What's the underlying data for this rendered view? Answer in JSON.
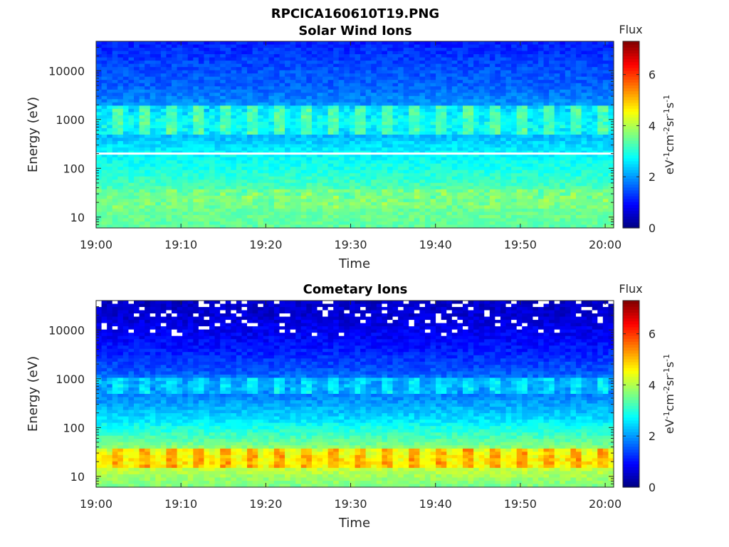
{
  "figure": {
    "suptitle": "RPCICA160610T19.PNG"
  },
  "chart_data": [
    {
      "type": "heatmap",
      "title": "Solar Wind Ions",
      "xlabel": "Time",
      "ylabel": "Energy (eV)",
      "x_ticks": [
        "19:00",
        "19:10",
        "19:20",
        "19:30",
        "19:40",
        "19:50",
        "20:00"
      ],
      "x_range": [
        "19:00",
        "20:01"
      ],
      "y_scale": "log",
      "y_ticks": [
        10,
        100,
        1000,
        10000
      ],
      "y_tick_labels": [
        "10",
        "100",
        "1000",
        "10000"
      ],
      "y_range": [
        6,
        40000
      ],
      "colorbar": {
        "title": "Flux",
        "label": "eV-1cm-2sr-1s-1",
        "ticks": [
          0,
          2,
          4,
          6
        ],
        "range": [
          0,
          7.3
        ],
        "colormap": "jet"
      },
      "features": [
        {
          "energy_eV": [
            500,
            2000
          ],
          "flux_level": 3.3,
          "pattern": "periodic pulses every ~3.2 min"
        },
        {
          "energy_eV": [
            15,
            40
          ],
          "flux_level": 3.7,
          "pattern": "periodic pulses every ~3.2 min"
        },
        {
          "energy_eV": 200,
          "flux_level": null,
          "pattern": "no-data gap line"
        }
      ],
      "energy_profile": {
        "energy_eV": [
          6,
          10,
          20,
          30,
          60,
          100,
          150,
          200,
          300,
          500,
          800,
          1500,
          3000,
          5000,
          10000,
          20000,
          40000
        ],
        "mean_flux": [
          3.4,
          3.5,
          3.5,
          3.4,
          3.1,
          2.9,
          2.8,
          2.7,
          2.5,
          2.2,
          2.5,
          2.1,
          1.8,
          1.6,
          1.5,
          1.3,
          1.1
        ]
      }
    },
    {
      "type": "heatmap",
      "title": "Cometary Ions",
      "xlabel": "Time",
      "ylabel": "Energy (eV)",
      "x_ticks": [
        "19:00",
        "19:10",
        "19:20",
        "19:30",
        "19:40",
        "19:50",
        "20:00"
      ],
      "x_range": [
        "19:00",
        "20:01"
      ],
      "y_scale": "log",
      "y_ticks": [
        10,
        100,
        1000,
        10000
      ],
      "y_tick_labels": [
        "10",
        "100",
        "1000",
        "10000"
      ],
      "y_range": [
        6,
        40000
      ],
      "colorbar": {
        "title": "Flux",
        "label": "eV-1cm-2sr-1s-1",
        "ticks": [
          0,
          2,
          4,
          6
        ],
        "range": [
          0,
          7.3
        ],
        "colormap": "jet"
      },
      "features": [
        {
          "energy_eV": [
            500,
            1000
          ],
          "flux_level": 2.6,
          "pattern": "periodic pulses every ~3.2 min"
        },
        {
          "energy_eV": [
            15,
            40
          ],
          "flux_level": 5.2,
          "pattern": "periodic pulses every ~3.2 min"
        },
        {
          "energy_eV": [
            8000,
            40000
          ],
          "flux_level": null,
          "pattern": "sparse no-data gaps"
        }
      ],
      "energy_profile": {
        "energy_eV": [
          6,
          10,
          20,
          30,
          60,
          100,
          150,
          300,
          500,
          800,
          1500,
          3000,
          5000,
          10000,
          20000,
          40000
        ],
        "mean_flux": [
          3.6,
          3.9,
          4.4,
          4.0,
          3.3,
          2.9,
          2.5,
          2.1,
          1.8,
          1.9,
          1.5,
          1.2,
          1.0,
          0.8,
          0.6,
          0.5
        ]
      }
    }
  ]
}
